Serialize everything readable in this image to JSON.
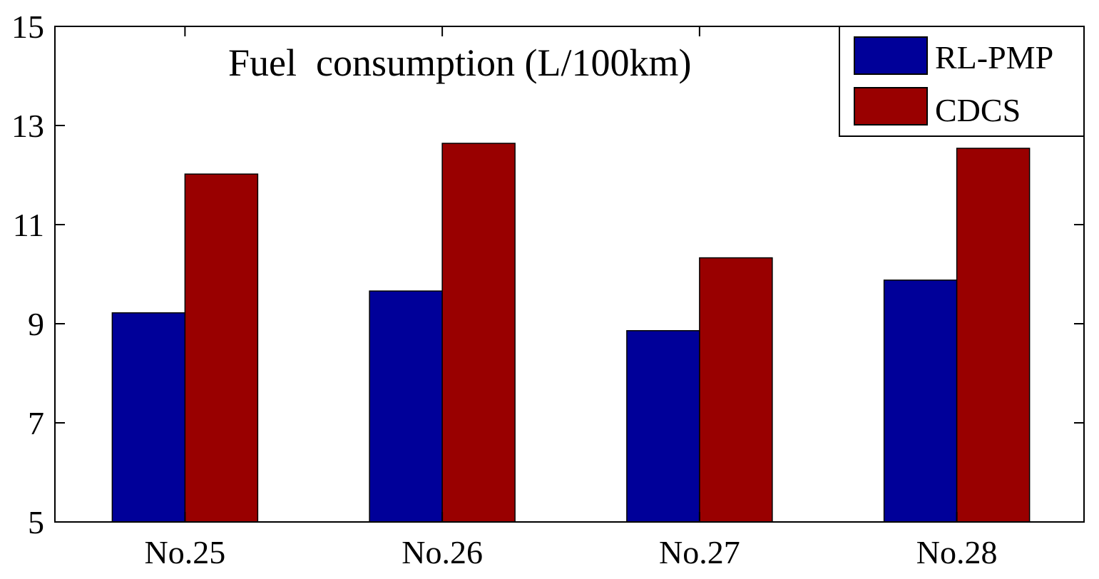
{
  "chart_data": {
    "type": "bar",
    "title": "Fuel  consumption (L/100km)",
    "xlabel": "",
    "ylabel": "",
    "categories": [
      "No.25",
      "No.26",
      "No.27",
      "No.28"
    ],
    "series": [
      {
        "name": "RL-PMP",
        "values": [
          9.22,
          9.66,
          8.86,
          9.88
        ],
        "color": "#000099"
      },
      {
        "name": "CDCS",
        "values": [
          12.02,
          12.64,
          10.33,
          12.54
        ],
        "color": "#990000"
      }
    ],
    "ylim": [
      5,
      15
    ],
    "yticks": [
      5,
      7,
      9,
      11,
      13,
      15
    ],
    "grid": false,
    "legend_position": "top-right"
  }
}
